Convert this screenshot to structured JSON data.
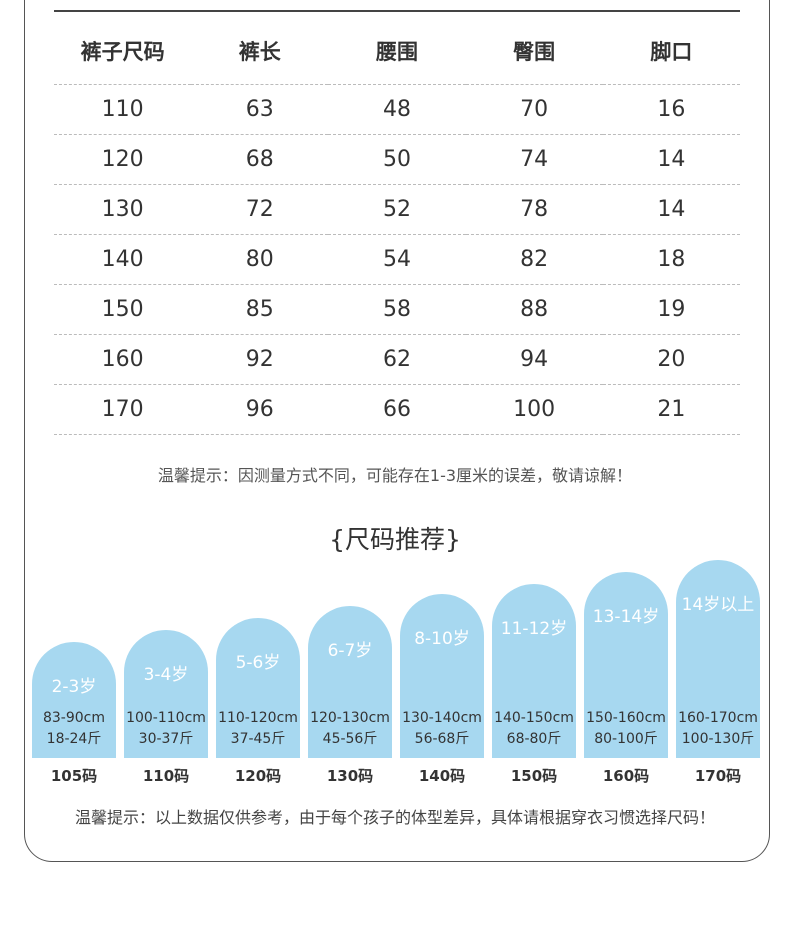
{
  "table": {
    "headers": [
      "裤子尺码",
      "裤长",
      "腰围",
      "臀围",
      "脚口"
    ],
    "rows": [
      [
        "110",
        "63",
        "48",
        "70",
        "16"
      ],
      [
        "120",
        "68",
        "50",
        "74",
        "14"
      ],
      [
        "130",
        "72",
        "52",
        "78",
        "14"
      ],
      [
        "140",
        "80",
        "54",
        "82",
        "18"
      ],
      [
        "150",
        "85",
        "58",
        "88",
        "19"
      ],
      [
        "160",
        "92",
        "62",
        "94",
        "20"
      ],
      [
        "170",
        "96",
        "66",
        "100",
        "21"
      ]
    ]
  },
  "note_measure": "温馨提示：因测量方式不同，可能存在1-3厘米的误差，敬请谅解！",
  "recommend_title": "{尺码推荐}",
  "recommend": [
    {
      "age": "2-3岁",
      "height": "83-90cm",
      "weight": "18-24斤",
      "size": "105码"
    },
    {
      "age": "3-4岁",
      "height": "100-110cm",
      "weight": "30-37斤",
      "size": "110码"
    },
    {
      "age": "5-6岁",
      "height": "110-120cm",
      "weight": "37-45斤",
      "size": "120码"
    },
    {
      "age": "6-7岁",
      "height": "120-130cm",
      "weight": "45-56斤",
      "size": "130码"
    },
    {
      "age": "8-10岁",
      "height": "130-140cm",
      "weight": "56-68斤",
      "size": "140码"
    },
    {
      "age": "11-12岁",
      "height": "140-150cm",
      "weight": "68-80斤",
      "size": "150码"
    },
    {
      "age": "13-14岁",
      "height": "150-160cm",
      "weight": "80-100斤",
      "size": "160码"
    },
    {
      "age": "14岁以上",
      "height": "160-170cm",
      "weight": "100-130斤",
      "size": "170码"
    }
  ],
  "note_reference": "温馨提示：以上数据仅供参考，由于每个孩子的体型差异，具体请根据穿衣习惯选择尺码！",
  "colors": {
    "bar": "#a7d8f0",
    "frame": "#555555"
  }
}
